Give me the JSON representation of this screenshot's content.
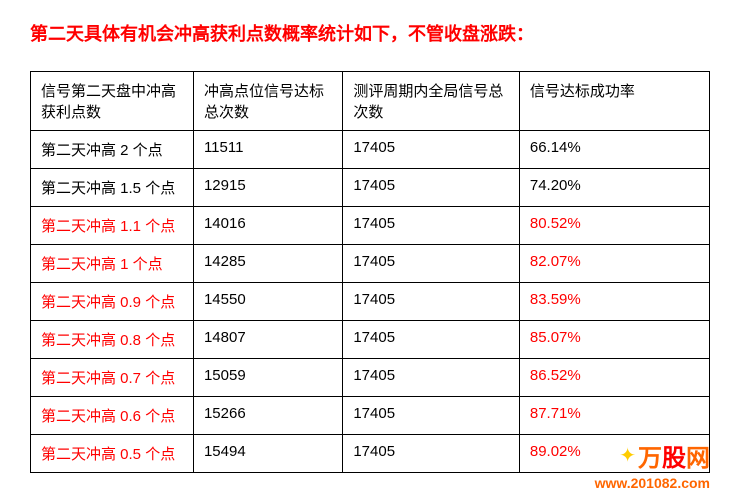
{
  "title": "第二天具体有机会冲高获利点数概率统计如下，不管收盘涨跌：",
  "table": {
    "headers": [
      "信号第二天盘中冲高获利点数",
      "冲高点位信号达标总次数",
      "测评周期内全局信号总次数",
      "信号达标成功率"
    ],
    "rows": [
      {
        "label": "第二天冲高 2 个点",
        "count": "11511",
        "total": "17405",
        "rate": "66.14%",
        "red": false
      },
      {
        "label": "第二天冲高 1.5 个点",
        "count": "12915",
        "total": "17405",
        "rate": "74.20%",
        "red": false
      },
      {
        "label": "第二天冲高 1.1 个点",
        "count": "14016",
        "total": "17405",
        "rate": "80.52%",
        "red": true
      },
      {
        "label": "第二天冲高 1 个点",
        "count": "14285",
        "total": "17405",
        "rate": "82.07%",
        "red": true
      },
      {
        "label": "第二天冲高 0.9 个点",
        "count": "14550",
        "total": "17405",
        "rate": "83.59%",
        "red": true
      },
      {
        "label": "第二天冲高 0.8 个点",
        "count": "14807",
        "total": "17405",
        "rate": "85.07%",
        "red": true
      },
      {
        "label": "第二天冲高 0.7 个点",
        "count": "15059",
        "total": "17405",
        "rate": "86.52%",
        "red": true
      },
      {
        "label": "第二天冲高 0.6 个点",
        "count": "15266",
        "total": "17405",
        "rate": "87.71%",
        "red": true
      },
      {
        "label": "第二天冲高 0.5 个点",
        "count": "15494",
        "total": "17405",
        "rate": "89.02%",
        "red": true
      }
    ]
  },
  "watermark": {
    "brand_wan": "万",
    "brand_gu": "股",
    "brand_wang": "网",
    "url": "www.201082.com"
  }
}
